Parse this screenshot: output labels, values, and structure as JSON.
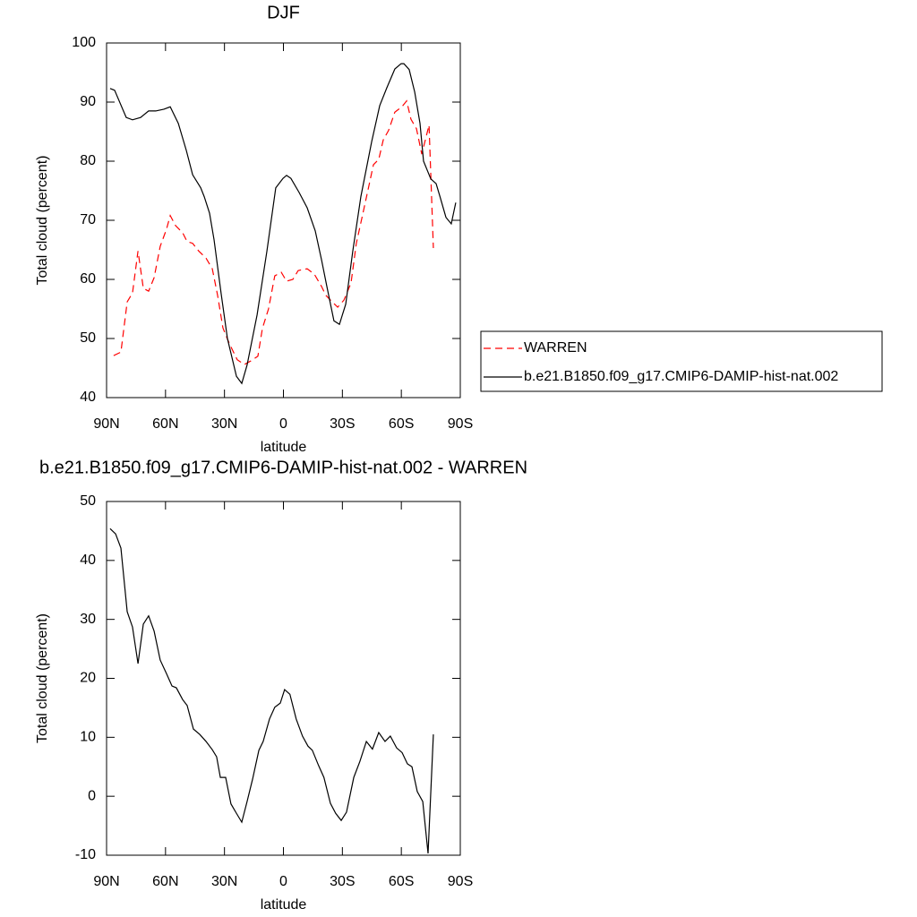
{
  "chart_data": [
    {
      "type": "line",
      "title": "DJF",
      "xlabel": "latitude",
      "ylabel": "Total cloud (percent)",
      "xlim": [
        90,
        -90
      ],
      "xticks": [
        {
          "value": 90,
          "label": "90N"
        },
        {
          "value": 60,
          "label": "60N"
        },
        {
          "value": 30,
          "label": "30N"
        },
        0,
        {
          "value": -30,
          "label": "30S"
        },
        {
          "value": -60,
          "label": "60S"
        },
        {
          "value": -90,
          "label": "90S"
        }
      ],
      "ylim": [
        40,
        100
      ],
      "yticks": [
        40,
        50,
        60,
        70,
        80,
        90,
        100
      ],
      "legend": "right",
      "series": [
        {
          "name": "WARREN",
          "color": "#ff0000",
          "dash": true,
          "x": [
            86.4,
            82.7,
            79.5,
            76.8,
            74,
            71.3,
            68.6,
            65.8,
            62.7,
            59.5,
            57.6,
            54.9,
            51.3,
            49,
            46.2,
            43.1,
            39.4,
            36.2,
            33.5,
            30.8,
            27.6,
            23.5,
            19.9,
            16.6,
            13,
            10.7,
            7.6,
            4.4,
            1.1,
            -1.6,
            -4.8,
            -7.5,
            -12.1,
            -15.7,
            -19.4,
            -21.6,
            -23.9,
            -27.6,
            -30.8,
            -34.4,
            -37.1,
            -40.8,
            -45.8,
            -48.5,
            -50.8,
            -53.5,
            -56.7,
            -60.3,
            -62.7,
            -64.9,
            -67.7,
            -70.4,
            -74.1,
            -76.3
          ],
          "values": [
            47.1,
            47.7,
            56.2,
            57.7,
            64.8,
            58.5,
            58,
            60.3,
            65.6,
            68.5,
            70.8,
            69.1,
            67.9,
            66.4,
            66.1,
            64.8,
            63.6,
            61.8,
            57.3,
            51.8,
            49.2,
            46.4,
            45.6,
            46.2,
            47,
            51.7,
            55,
            60.6,
            61.2,
            59.7,
            60,
            61.5,
            61.8,
            60.9,
            58.8,
            57.3,
            56.5,
            55.3,
            56.5,
            59.4,
            66.1,
            71.7,
            79.4,
            80.3,
            83.6,
            85.2,
            88.3,
            89.2,
            90.2,
            87.1,
            85.5,
            81.2,
            86.1,
            65.3
          ]
        },
        {
          "name": "b.e21.B1850.f09_g17.CMIP6-DAMIP-hist-nat.002",
          "color": "#000000",
          "dash": false,
          "x": [
            88.2,
            85.9,
            80,
            76.8,
            72.7,
            68.6,
            65,
            60.8,
            57.6,
            53.5,
            49.4,
            46.2,
            42.1,
            40.3,
            37.6,
            35.3,
            31.7,
            28.5,
            23.9,
            21.2,
            18.5,
            13.4,
            8.4,
            3.9,
            0.2,
            -1.6,
            -3.8,
            -8,
            -12.1,
            -16.2,
            -19.4,
            -22.1,
            -25.7,
            -28.5,
            -31.7,
            -35.3,
            -39.4,
            -44.9,
            -49,
            -52.6,
            -56.7,
            -59.9,
            -61.3,
            -64,
            -66.8,
            -69.5,
            -71.3,
            -75,
            -77.7,
            -79.5,
            -82.7,
            -85.4,
            -87.7
          ],
          "values": [
            92.3,
            92,
            87.4,
            87,
            87.4,
            88.5,
            88.5,
            88.8,
            89.2,
            86.4,
            81.8,
            77.7,
            75.5,
            74,
            71.2,
            66.7,
            57.6,
            50,
            43.6,
            42.4,
            45.5,
            54,
            64.8,
            75.5,
            77.1,
            77.6,
            77.1,
            74.7,
            72.1,
            68.2,
            63.3,
            58.8,
            53,
            52.4,
            55.8,
            64.8,
            74,
            83.3,
            89.4,
            92.4,
            95.6,
            96.5,
            96.5,
            95.5,
            91.7,
            86.4,
            80,
            77,
            76.2,
            74.2,
            70.5,
            69.4,
            73
          ]
        }
      ]
    },
    {
      "type": "line",
      "title": "b.e21.B1850.f09_g17.CMIP6-DAMIP-hist-nat.002 - WARREN",
      "xlabel": "latitude",
      "ylabel": "Total cloud (percent)",
      "xlim": [
        90,
        -90
      ],
      "xticks": [
        {
          "value": 90,
          "label": "90N"
        },
        {
          "value": 60,
          "label": "60N"
        },
        {
          "value": 30,
          "label": "30N"
        },
        0,
        {
          "value": -30,
          "label": "30S"
        },
        {
          "value": -60,
          "label": "60S"
        },
        {
          "value": -90,
          "label": "90S"
        }
      ],
      "ylim": [
        -10,
        50
      ],
      "yticks": [
        -10,
        0,
        10,
        20,
        30,
        40,
        50
      ],
      "series": [
        {
          "color": "#000000",
          "dash": false,
          "x": [
            88.2,
            85.4,
            82.7,
            79.5,
            76.8,
            74,
            71.3,
            68.6,
            65.8,
            62.7,
            59.5,
            56.7,
            54.5,
            51.3,
            49,
            45.8,
            42.6,
            39.4,
            36.2,
            34,
            32.1,
            29.4,
            26.7,
            23.9,
            21.2,
            18.5,
            15.7,
            12.5,
            10.3,
            7.1,
            4.4,
            1.6,
            -0.6,
            -3.3,
            -6.5,
            -9.7,
            -12.5,
            -14.7,
            -17.9,
            -20.6,
            -23.9,
            -26.6,
            -29.4,
            -32.1,
            -35.8,
            -38.9,
            -42.2,
            -45.3,
            -48.5,
            -51.7,
            -54.4,
            -57.6,
            -60.4,
            -63.1,
            -65.4,
            -68.1,
            -70.9,
            -73.6,
            -76.3
          ],
          "values": [
            45.4,
            44.5,
            42.1,
            31.3,
            28.7,
            22.5,
            29.2,
            30.6,
            28,
            23.1,
            20.8,
            18.7,
            18.4,
            16.4,
            15.4,
            11.4,
            10.5,
            9.3,
            7.9,
            6.7,
            3.2,
            3.2,
            -1.3,
            -2.9,
            -4.4,
            -0.9,
            2.9,
            7.8,
            9.3,
            13.1,
            15.1,
            15.8,
            18.1,
            17.3,
            13.1,
            10.2,
            8.5,
            7.8,
            5.2,
            3.2,
            -1.2,
            -2.9,
            -4.1,
            -2.7,
            3.2,
            5.9,
            9.3,
            8,
            10.8,
            9.3,
            10.2,
            8.2,
            7.4,
            5.5,
            5,
            0.8,
            -0.9,
            -9.7,
            10.5
          ]
        }
      ]
    }
  ]
}
